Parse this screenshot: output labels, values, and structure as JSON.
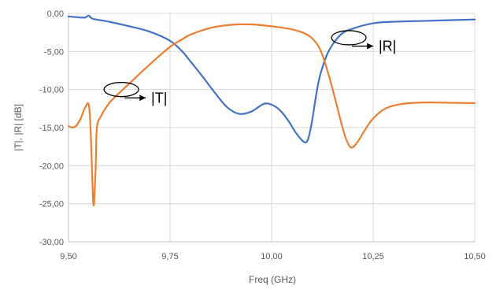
{
  "chart_data": {
    "type": "line",
    "title": "",
    "xlabel": "Freq (GHz)",
    "ylabel": "|T|, |R| [dB]",
    "xlim": [
      9.5,
      10.5
    ],
    "ylim": [
      -30,
      0
    ],
    "x_ticks": [
      9.5,
      9.75,
      10.0,
      10.25,
      10.5
    ],
    "x_tick_labels": [
      "9,50",
      "9,75",
      "10,00",
      "10,25",
      "10,50"
    ],
    "y_ticks": [
      0,
      -5,
      -10,
      -15,
      -20,
      -25,
      -30
    ],
    "y_tick_labels": [
      "0,00",
      "-5,00",
      "-10,00",
      "-15,00",
      "-20,00",
      "-25,00",
      "-30,00"
    ],
    "grid": true,
    "colors": {
      "R": "#4472C4",
      "T": "#ED7D31",
      "grid": "#D9D9D9",
      "axis": "#BFBFBF"
    },
    "series": [
      {
        "name": "|R|",
        "color": "#4472C4",
        "points": [
          [
            9.5,
            -0.4
          ],
          [
            9.52,
            -0.5
          ],
          [
            9.54,
            -0.55
          ],
          [
            9.55,
            -0.3
          ],
          [
            9.56,
            -0.7
          ],
          [
            9.6,
            -1.1
          ],
          [
            9.65,
            -1.7
          ],
          [
            9.7,
            -2.4
          ],
          [
            9.75,
            -3.6
          ],
          [
            9.78,
            -5.0
          ],
          [
            9.8,
            -6.3
          ],
          [
            9.83,
            -8.3
          ],
          [
            9.86,
            -10.4
          ],
          [
            9.89,
            -12.3
          ],
          [
            9.92,
            -13.2
          ],
          [
            9.95,
            -12.9
          ],
          [
            9.98,
            -11.9
          ],
          [
            10.0,
            -12.0
          ],
          [
            10.02,
            -12.7
          ],
          [
            10.04,
            -14.0
          ],
          [
            10.06,
            -15.7
          ],
          [
            10.08,
            -16.9
          ],
          [
            10.09,
            -16.5
          ],
          [
            10.1,
            -14.0
          ],
          [
            10.11,
            -10.6
          ],
          [
            10.12,
            -8.0
          ],
          [
            10.14,
            -5.0
          ],
          [
            10.17,
            -2.8
          ],
          [
            10.2,
            -2.0
          ],
          [
            10.25,
            -1.3
          ],
          [
            10.3,
            -1.1
          ],
          [
            10.4,
            -0.95
          ],
          [
            10.5,
            -0.8
          ]
        ]
      },
      {
        "name": "|T|",
        "color": "#ED7D31",
        "points": [
          [
            9.5,
            -14.8
          ],
          [
            9.51,
            -15.0
          ],
          [
            9.52,
            -14.7
          ],
          [
            9.53,
            -13.8
          ],
          [
            9.54,
            -12.5
          ],
          [
            9.55,
            -12.0
          ],
          [
            9.555,
            -16.0
          ],
          [
            9.56,
            -24.0
          ],
          [
            9.563,
            -24.8
          ],
          [
            9.567,
            -20.0
          ],
          [
            9.57,
            -15.0
          ],
          [
            9.58,
            -13.5
          ],
          [
            9.6,
            -11.8
          ],
          [
            9.62,
            -10.7
          ],
          [
            9.65,
            -9.2
          ],
          [
            9.7,
            -6.7
          ],
          [
            9.75,
            -4.4
          ],
          [
            9.78,
            -3.4
          ],
          [
            9.8,
            -2.8
          ],
          [
            9.85,
            -1.9
          ],
          [
            9.9,
            -1.5
          ],
          [
            9.95,
            -1.45
          ],
          [
            10.0,
            -1.7
          ],
          [
            10.05,
            -2.1
          ],
          [
            10.08,
            -2.6
          ],
          [
            10.1,
            -3.3
          ],
          [
            10.12,
            -4.8
          ],
          [
            10.14,
            -8.0
          ],
          [
            10.16,
            -12.0
          ],
          [
            10.18,
            -16.0
          ],
          [
            10.195,
            -17.6
          ],
          [
            10.21,
            -17.0
          ],
          [
            10.23,
            -15.3
          ],
          [
            10.25,
            -13.8
          ],
          [
            10.28,
            -12.5
          ],
          [
            10.32,
            -11.9
          ],
          [
            10.38,
            -11.7
          ],
          [
            10.45,
            -11.75
          ],
          [
            10.5,
            -11.8
          ]
        ]
      }
    ],
    "annotations": [
      {
        "text": "|T|",
        "target_series": "|T|",
        "ellipse_center": [
          9.63,
          -10.0
        ],
        "arrow_end": [
          9.69,
          -11.1
        ]
      },
      {
        "text": "|R|",
        "target_series": "|R|",
        "ellipse_center": [
          10.19,
          -3.2
        ],
        "arrow_end": [
          10.25,
          -4.3
        ]
      }
    ]
  }
}
